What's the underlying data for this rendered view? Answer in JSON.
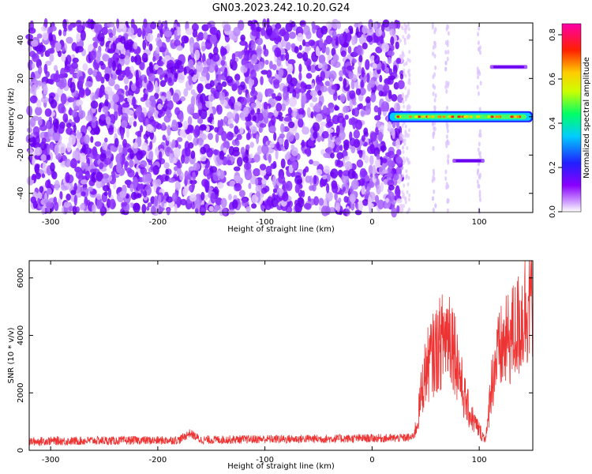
{
  "figure": {
    "title": "GN03.2023.242.10.20.G24"
  },
  "chart_data": [
    {
      "type": "heatmap",
      "title": "GN03.2023.242.10.20.G24",
      "xlabel": "Height of straight line (km)",
      "ylabel": "Frequency (Hz)",
      "xlim": [
        -320,
        150
      ],
      "ylim": [
        -50,
        49
      ],
      "x_ticks": [
        -300,
        -200,
        -100,
        0,
        100
      ],
      "y_ticks": [
        -40,
        -20,
        0,
        20,
        40
      ],
      "grid": false,
      "colorbar": {
        "label": "Normalized spectral amplitude",
        "range": [
          0,
          0.85
        ],
        "ticks": [
          "0.0",
          "0.2",
          "0.4",
          "0.6",
          "0.8"
        ],
        "colormap": "rainbow (purple → blue → cyan → green → yellow → red → magenta)"
      },
      "noise_region_x": [
        -320,
        28
      ],
      "signal_features": [
        {
          "x_start": 15,
          "x_end": 150,
          "frequency": 0,
          "amplitude": 0.55
        },
        {
          "x_start": 110,
          "x_end": 145,
          "frequency": 26,
          "amplitude": 0.15
        },
        {
          "x_start": 75,
          "x_end": 105,
          "frequency": -23,
          "amplitude": 0.12
        }
      ]
    },
    {
      "type": "line",
      "xlabel": "Height of straight line (km)",
      "ylabel": "SNR (10 * v/v)",
      "xlim": [
        -320,
        150
      ],
      "ylim": [
        0,
        6600
      ],
      "x_ticks": [
        -300,
        -200,
        -100,
        0,
        100
      ],
      "y_ticks": [
        0,
        2000,
        4000,
        6000
      ],
      "grid": false,
      "series": [
        {
          "color": "#ee3333",
          "x": [
            -320,
            -300,
            -280,
            -260,
            -240,
            -220,
            -200,
            -180,
            -170,
            -160,
            -140,
            -120,
            -100,
            -80,
            -60,
            -40,
            -20,
            0,
            20,
            38,
            42,
            46,
            50,
            55,
            60,
            65,
            70,
            72,
            75,
            80,
            85,
            90,
            95,
            100,
            105,
            108,
            110,
            115,
            120,
            125,
            130,
            135,
            140,
            145,
            150
          ],
          "y": [
            300,
            330,
            320,
            340,
            330,
            350,
            340,
            360,
            600,
            360,
            370,
            380,
            390,
            390,
            400,
            400,
            410,
            420,
            420,
            450,
            900,
            2000,
            2800,
            3200,
            3500,
            3800,
            4100,
            4200,
            3900,
            3000,
            2000,
            1400,
            1000,
            700,
            400,
            800,
            2000,
            3000,
            3500,
            3700,
            4000,
            4200,
            4600,
            5200,
            5600
          ],
          "noise_amplitude_note": "dense noisy trace"
        }
      ]
    }
  ]
}
